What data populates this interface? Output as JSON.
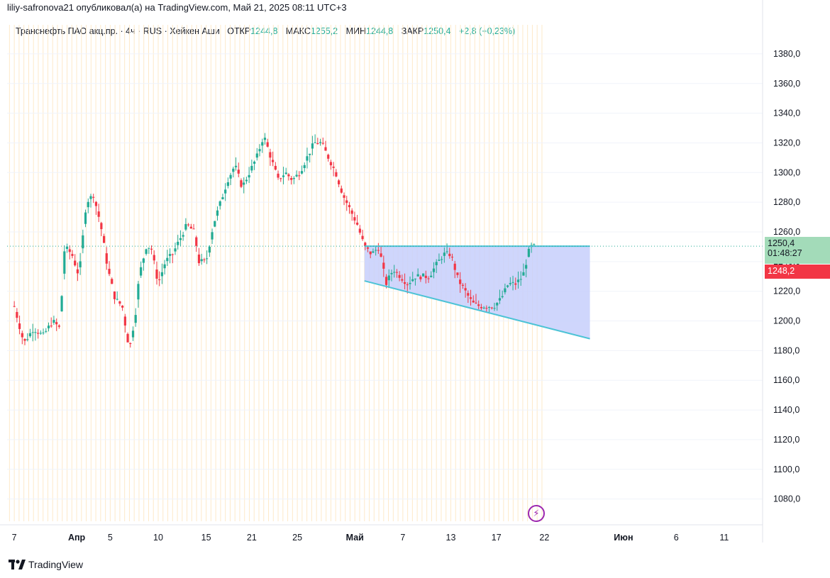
{
  "publisher_line": "liliy-safronova21 опубликовал(а) на TradingView.com, Май 21, 2025 08:11 UTC+3",
  "legend": {
    "symbol": "Транснефть ПАО акц.пр. · 4ч · RUS · Хейкен Аши",
    "open_label": "ОТКР",
    "open": "1244,8",
    "high_label": "МАКС",
    "high": "1255,2",
    "low_label": "МИН",
    "low": "1244,8",
    "close_label": "ЗАКР",
    "close": "1250,4",
    "change": "+2,8 (+0,23%)"
  },
  "price_tags": {
    "last": "1250,4",
    "countdown": "01:48:27",
    "bid": "1248,2"
  },
  "branding": "TradingView",
  "colors": {
    "up": "#22ab94",
    "down": "#f23645",
    "pattern_line": "#4dc3d6",
    "pattern_fill": "#c7cffb",
    "session_lines": "#fde9c9"
  },
  "chart_data": {
    "type": "candlestick",
    "style": "heikin-ashi",
    "ylim": [
      1065,
      1390
    ],
    "y_ticks": [
      "1380,0",
      "1360,0",
      "1340,0",
      "1320,0",
      "1300,0",
      "1280,0",
      "1260,0",
      "1240,0",
      "1220,0",
      "1200,0",
      "1180,0",
      "1160,0",
      "1140,0",
      "1120,0",
      "1100,0",
      "1080,0"
    ],
    "y_tick_values": [
      1380,
      1360,
      1340,
      1320,
      1300,
      1280,
      1260,
      1240,
      1220,
      1200,
      1180,
      1160,
      1140,
      1120,
      1100,
      1080
    ],
    "x_ticks": [
      {
        "label": "7",
        "x": 0
      },
      {
        "label": "Апр",
        "x": 13
      },
      {
        "label": "5",
        "x": 20
      },
      {
        "label": "10",
        "x": 30
      },
      {
        "label": "15",
        "x": 40
      },
      {
        "label": "21",
        "x": 49.5
      },
      {
        "label": "25",
        "x": 59
      },
      {
        "label": "Май",
        "x": 71
      },
      {
        "label": "7",
        "x": 81
      },
      {
        "label": "13",
        "x": 91
      },
      {
        "label": "17",
        "x": 100.5
      },
      {
        "label": "22",
        "x": 110.5
      },
      {
        "label": "Июн",
        "x": 127
      },
      {
        "label": "6",
        "x": 138
      },
      {
        "label": "11",
        "x": 148
      }
    ],
    "xlim": [
      -1.5,
      156
    ],
    "candles_close_path": [
      [
        0,
        1210
      ],
      [
        2,
        1185
      ],
      [
        4,
        1195
      ],
      [
        6,
        1190
      ],
      [
        8,
        1200
      ],
      [
        9.5,
        1195
      ],
      [
        10.5,
        1250
      ],
      [
        12,
        1245
      ],
      [
        13.5,
        1230
      ],
      [
        15,
        1280
      ],
      [
        16.5,
        1285
      ],
      [
        18,
        1265
      ],
      [
        19.5,
        1235
      ],
      [
        21,
        1215
      ],
      [
        22.5,
        1210
      ],
      [
        24,
        1180
      ],
      [
        25.5,
        1210
      ],
      [
        26,
        1230
      ],
      [
        27.5,
        1250
      ],
      [
        28.5,
        1250
      ],
      [
        30,
        1225
      ],
      [
        31.5,
        1240
      ],
      [
        33,
        1245
      ],
      [
        34.5,
        1255
      ],
      [
        36,
        1265
      ],
      [
        37.5,
        1260
      ],
      [
        38.5,
        1240
      ],
      [
        40,
        1240
      ],
      [
        41.5,
        1265
      ],
      [
        43,
        1280
      ],
      [
        44.5,
        1295
      ],
      [
        46,
        1305
      ],
      [
        47.5,
        1290
      ],
      [
        49,
        1300
      ],
      [
        50.5,
        1310
      ],
      [
        52,
        1325
      ],
      [
        53.5,
        1310
      ],
      [
        55,
        1295
      ],
      [
        56.5,
        1300
      ],
      [
        58,
        1295
      ],
      [
        59.5,
        1300
      ],
      [
        61,
        1310
      ],
      [
        62.5,
        1320
      ],
      [
        64,
        1320
      ],
      [
        65.5,
        1310
      ],
      [
        67,
        1300
      ],
      [
        68.5,
        1285
      ],
      [
        70,
        1275
      ],
      [
        71.5,
        1265
      ],
      [
        73,
        1250
      ],
      [
        74.5,
        1245
      ],
      [
        76,
        1250
      ],
      [
        77.5,
        1225
      ],
      [
        79,
        1235
      ],
      [
        80.5,
        1230
      ],
      [
        82,
        1225
      ],
      [
        83.5,
        1230
      ],
      [
        85,
        1230
      ],
      [
        86.5,
        1230
      ],
      [
        88,
        1238
      ],
      [
        89.5,
        1245
      ],
      [
        91,
        1245
      ],
      [
        92.5,
        1228
      ],
      [
        94,
        1220
      ],
      [
        95.5,
        1212
      ],
      [
        97,
        1210
      ],
      [
        98.5,
        1210
      ],
      [
        100,
        1210
      ],
      [
        101.5,
        1215
      ],
      [
        103,
        1225
      ],
      [
        104.5,
        1225
      ],
      [
        106,
        1230
      ],
      [
        107.5,
        1250
      ],
      [
        108.5,
        1250
      ]
    ],
    "pattern_triangle": {
      "upper": [
        [
          73,
          1250.4
        ],
        [
          120,
          1250.4
        ]
      ],
      "lower": [
        [
          73,
          1227
        ],
        [
          120,
          1188
        ]
      ]
    },
    "last_price": 1250.4,
    "bid_price": 1248.2
  }
}
